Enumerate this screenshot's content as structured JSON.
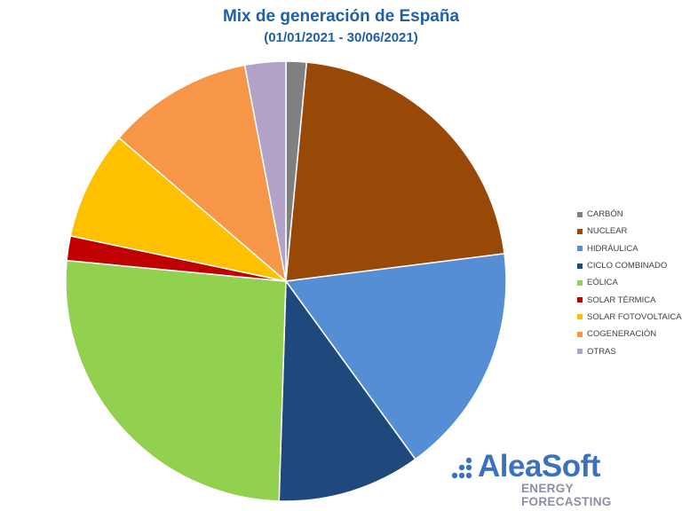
{
  "chart_data": {
    "type": "pie",
    "title": "Mix de generación de España",
    "subtitle": "(01/01/2021 - 30/06/2021)",
    "legend_position": "right",
    "series": [
      {
        "name": "CARBÓN",
        "value": 1.5,
        "color": "#808080"
      },
      {
        "name": "NUCLEAR",
        "value": 21.5,
        "color": "#984807"
      },
      {
        "name": "HIDRÁULICA",
        "value": 17.0,
        "color": "#558ed5"
      },
      {
        "name": "CICLO COMBINADO",
        "value": 10.5,
        "color": "#1f497d"
      },
      {
        "name": "EÓLICA",
        "value": 26.0,
        "color": "#92d050"
      },
      {
        "name": "SOLAR TÉRMICA",
        "value": 1.8,
        "color": "#c00000"
      },
      {
        "name": "SOLAR FOTOVOLTAICA",
        "value": 8.0,
        "color": "#ffc000"
      },
      {
        "name": "COGENERACIÓN",
        "value": 10.7,
        "color": "#f79646"
      },
      {
        "name": "OTRAS",
        "value": 3.0,
        "color": "#b3a2c7"
      }
    ]
  },
  "logo": {
    "name": "AleaSoft",
    "tagline": "ENERGY FORECASTING",
    "name_color": "#3a72c0",
    "tagline_color": "#8a8fa6"
  }
}
